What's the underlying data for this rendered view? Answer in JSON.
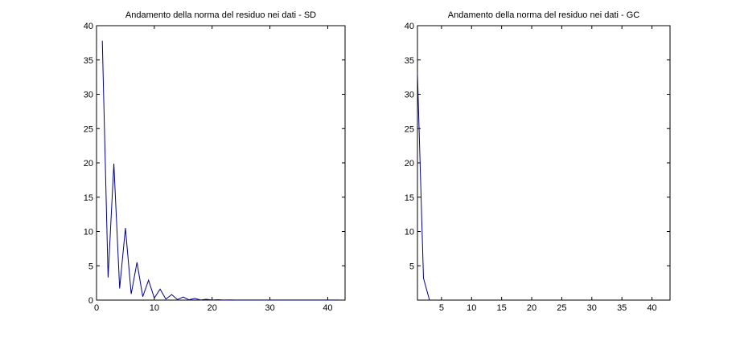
{
  "chart_data": [
    {
      "type": "line",
      "title": "Andamento della norma del residuo nei dati - SD",
      "xlabel": "",
      "ylabel": "",
      "xlim": [
        0,
        43
      ],
      "ylim": [
        0,
        40
      ],
      "xticks": [
        0,
        10,
        20,
        30,
        40
      ],
      "yticks": [
        0,
        5,
        10,
        15,
        20,
        25,
        30,
        35,
        40
      ],
      "grid": false,
      "color": "#00008b",
      "series": [
        {
          "x": [
            1,
            2,
            3,
            4,
            5,
            6,
            7,
            8,
            9,
            10,
            11,
            12,
            13,
            14,
            15,
            16,
            17,
            18,
            19,
            20,
            21,
            22,
            23,
            24,
            25,
            26,
            27,
            28,
            29,
            30,
            31,
            32,
            33,
            34,
            35,
            36,
            37,
            38,
            39,
            40,
            41,
            42
          ],
          "values": [
            37.8,
            3.3,
            19.9,
            1.7,
            10.5,
            0.9,
            5.5,
            0.5,
            2.9,
            0.3,
            1.6,
            0.15,
            0.8,
            0.08,
            0.45,
            0.04,
            0.25,
            0.02,
            0.12,
            0.01,
            0.06,
            0.01,
            0.03,
            0.01,
            0.02,
            0.01,
            0.01,
            0.01,
            0.01,
            0.01,
            0.01,
            0.01,
            0.01,
            0.01,
            0.01,
            0.01,
            0.01,
            0.01,
            0.01,
            0.01,
            0.01,
            0.01
          ]
        }
      ]
    },
    {
      "type": "line",
      "title": "Andamento della norma del residuo nei dati - GC",
      "xlabel": "",
      "ylabel": "",
      "xlim": [
        1,
        43
      ],
      "ylim": [
        0,
        40
      ],
      "xticks": [
        5,
        10,
        15,
        20,
        25,
        30,
        35,
        40
      ],
      "yticks": [
        5,
        10,
        15,
        20,
        25,
        30,
        35,
        40
      ],
      "grid": false,
      "color": "#00008b",
      "series": [
        {
          "x": [
            1,
            2,
            3
          ],
          "values": [
            33.1,
            3.2,
            0
          ]
        }
      ]
    }
  ]
}
